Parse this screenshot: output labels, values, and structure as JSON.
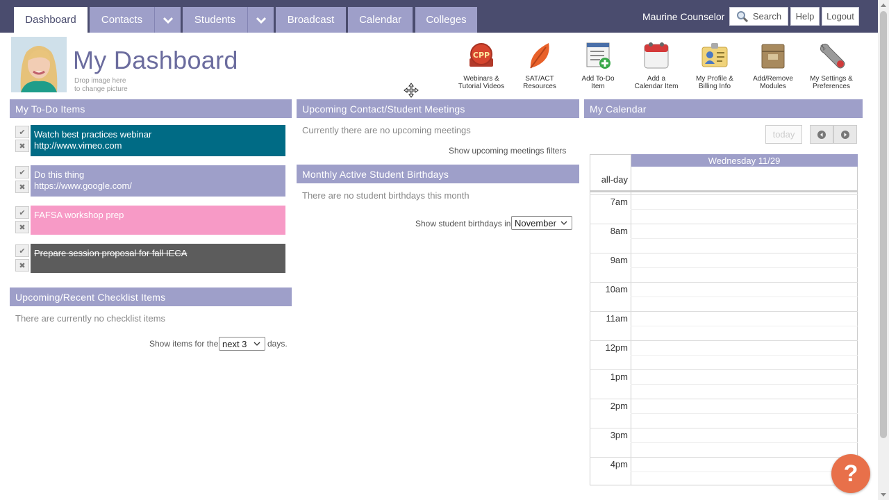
{
  "nav": {
    "tabs": [
      {
        "label": "Dashboard",
        "active": true
      },
      {
        "label": "Contacts",
        "has_dropdown": true
      },
      {
        "label": "Students",
        "has_dropdown": true
      },
      {
        "label": "Broadcast"
      },
      {
        "label": "Calendar"
      },
      {
        "label": "Colleges"
      }
    ],
    "user_name": "Maurine Counselor",
    "search_label": "Search",
    "help_label": "Help",
    "logout_label": "Logout"
  },
  "header": {
    "title": "My Dashboard",
    "avatar_hint_line1": "Drop image here",
    "avatar_hint_line2": "to change picture"
  },
  "quick_links": [
    {
      "line1": "Webinars &",
      "line2": "Tutorial Videos",
      "icon": "cpp-badge-icon"
    },
    {
      "line1": "SAT/ACT",
      "line2": "Resources",
      "icon": "leaf-icon"
    },
    {
      "line1": "Add To-Do",
      "line2": "Item",
      "icon": "add-todo-icon"
    },
    {
      "line1": "Add a",
      "line2": "Calendar Item",
      "icon": "calendar-icon"
    },
    {
      "line1": "My Profile &",
      "line2": "Billing Info",
      "icon": "profile-card-icon"
    },
    {
      "line1": "Add/Remove",
      "line2": "Modules",
      "icon": "modules-box-icon"
    },
    {
      "line1": "My Settings &",
      "line2": "Preferences",
      "icon": "wrench-icon"
    }
  ],
  "todo": {
    "title": "My To-Do Items",
    "items": [
      {
        "line1": "Watch best practices webinar",
        "line2": "http://www.vimeo.com",
        "color": "#006b85",
        "done": false
      },
      {
        "line1": "Do this thing",
        "line2": "https://www.google.com/",
        "color": "#9e9fc9",
        "done": false
      },
      {
        "line1": "FAFSA workshop prep",
        "line2": "",
        "color": "#f79ac6",
        "done": false
      },
      {
        "line1": "Prepare session proposal for fall IECA",
        "line2": "",
        "color": "#5c5c5c",
        "done": true
      }
    ]
  },
  "checklist": {
    "title": "Upcoming/Recent Checklist Items",
    "empty_text": "There are currently no checklist items",
    "show_prefix": "Show items for the",
    "range_value": "next 3",
    "show_suffix": "days."
  },
  "meetings": {
    "title": "Upcoming Contact/Student Meetings",
    "empty_text": "Currently there are no upcoming meetings",
    "filters_link": "Show upcoming meetings filters"
  },
  "birthdays": {
    "title": "Monthly Active Student Birthdays",
    "empty_text": "There are no student birthdays this month",
    "show_label": "Show student birthdays in",
    "month_value": "November"
  },
  "calendar": {
    "title": "My Calendar",
    "today_label": "today",
    "day_header": "Wednesday 11/29",
    "allday_label": "all-day",
    "hours": [
      "7am",
      "8am",
      "9am",
      "10am",
      "11am",
      "12pm",
      "1pm",
      "2pm",
      "3pm",
      "4pm"
    ]
  },
  "help_fab": "?",
  "colors": {
    "nav_bg": "#4a4c6e",
    "tab_bg": "#9e9fc9",
    "accent": "#6b6c9e",
    "help": "#e8704a"
  }
}
